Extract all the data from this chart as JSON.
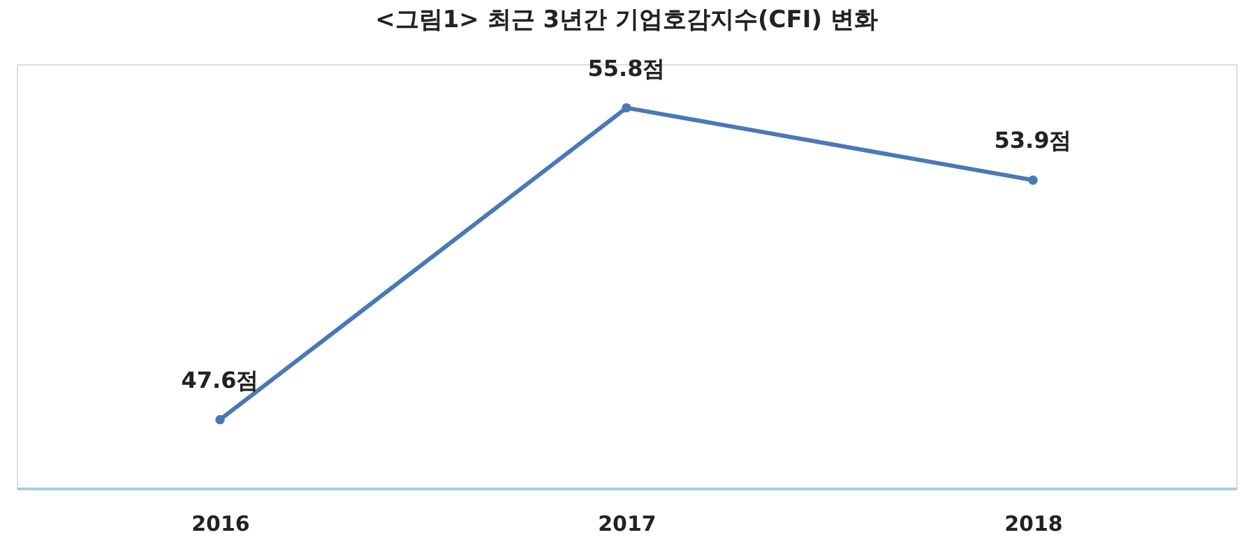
{
  "chart_data": {
    "type": "line",
    "title": "<그림1> 최근 3년간 기업호감지수(CFI) 변화",
    "categories": [
      "2016",
      "2017",
      "2018"
    ],
    "series": [
      {
        "color": "#4a78b8",
        "values": [
          47.6,
          55.8,
          53.9
        ],
        "value_labels": [
          "47.6점",
          "55.8점",
          "53.9점"
        ]
      }
    ],
    "marker": "circle",
    "line_style": "solid"
  }
}
